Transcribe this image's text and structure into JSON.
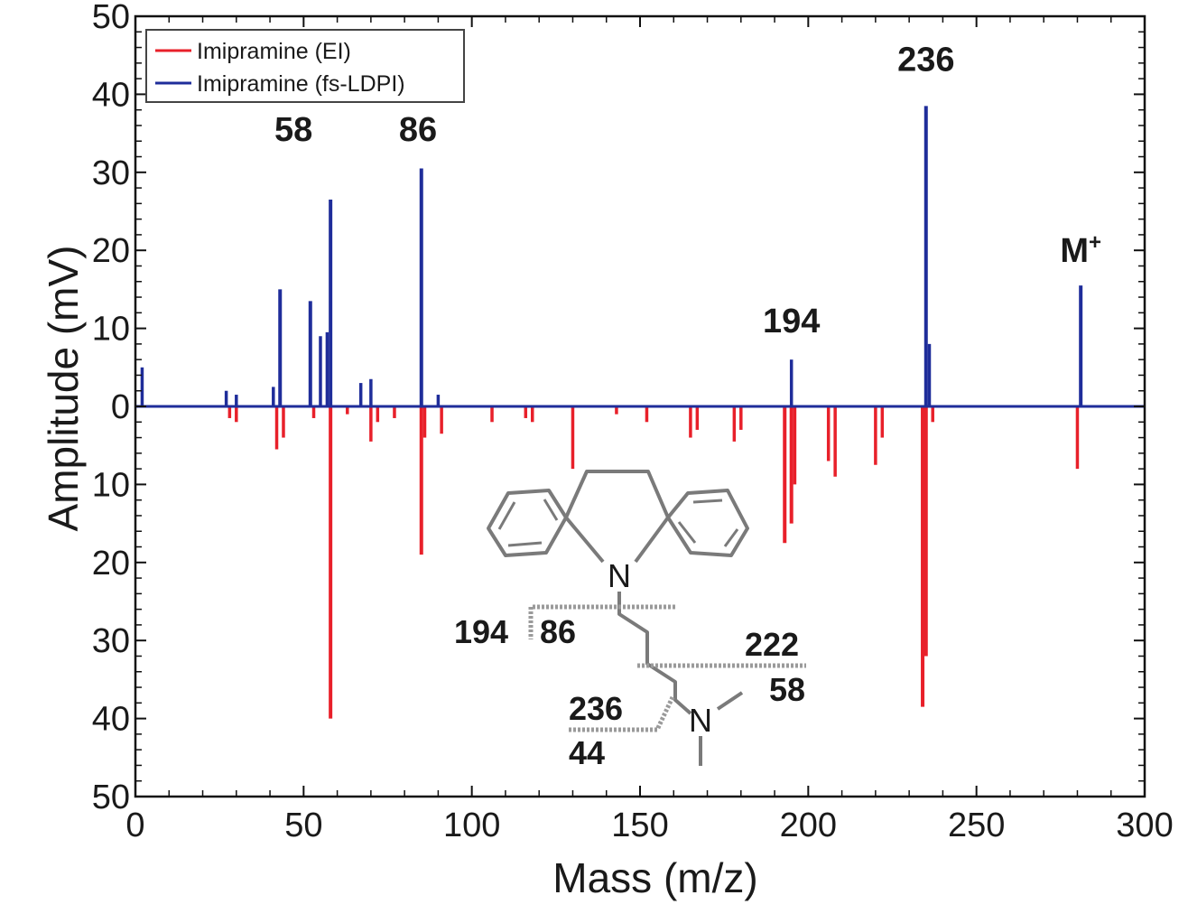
{
  "chart_data": {
    "type": "line",
    "title": "",
    "xlabel": "Mass (m/z)",
    "ylabel": "Amplitude (mV)",
    "xlim": [
      0,
      300
    ],
    "ylim": [
      -50,
      50
    ],
    "x_ticks": [
      0,
      50,
      100,
      150,
      200,
      250,
      300
    ],
    "x_tick_labels": [
      "0",
      "50",
      "100",
      "150",
      "200",
      "250",
      "300"
    ],
    "y_ticks": [
      50,
      40,
      30,
      20,
      10,
      0,
      -10,
      -20,
      -30,
      -40,
      -50
    ],
    "y_tick_labels": [
      "50",
      "40",
      "30",
      "20",
      "10",
      "0",
      "10",
      "20",
      "30",
      "40",
      "50"
    ],
    "legend_position": "top-left",
    "series": [
      {
        "name": "Imipramine (EI)",
        "color": "#e8202a",
        "direction": "down",
        "peaks": [
          [
            28,
            1.5
          ],
          [
            30,
            2
          ],
          [
            42,
            5.5
          ],
          [
            44,
            4
          ],
          [
            53,
            1.5
          ],
          [
            58,
            40
          ],
          [
            63,
            1
          ],
          [
            70,
            4.5
          ],
          [
            72,
            2
          ],
          [
            77,
            1.5
          ],
          [
            85,
            19
          ],
          [
            86,
            4
          ],
          [
            91,
            3.5
          ],
          [
            106,
            2
          ],
          [
            116,
            1.5
          ],
          [
            118,
            2
          ],
          [
            130,
            8
          ],
          [
            143,
            1
          ],
          [
            152,
            2
          ],
          [
            165,
            4
          ],
          [
            167,
            3
          ],
          [
            178,
            4.5
          ],
          [
            180,
            3
          ],
          [
            193,
            17.5
          ],
          [
            195,
            15
          ],
          [
            196,
            10
          ],
          [
            206,
            7
          ],
          [
            208,
            9
          ],
          [
            220,
            7.5
          ],
          [
            222,
            4
          ],
          [
            234,
            38.5
          ],
          [
            235,
            32
          ],
          [
            237,
            2
          ],
          [
            280,
            8
          ]
        ]
      },
      {
        "name": "Imipramine (fs-LDPI)",
        "color": "#1f2d9a",
        "direction": "up",
        "peaks": [
          [
            2,
            5
          ],
          [
            27,
            2
          ],
          [
            30,
            1.5
          ],
          [
            41,
            2.5
          ],
          [
            43,
            15
          ],
          [
            52,
            13.5
          ],
          [
            55,
            9
          ],
          [
            57,
            9.5
          ],
          [
            58,
            26.5
          ],
          [
            67,
            3
          ],
          [
            70,
            3.5
          ],
          [
            85,
            30.5
          ],
          [
            90,
            1.5
          ],
          [
            195,
            6
          ],
          [
            235,
            38.5
          ],
          [
            236,
            8
          ],
          [
            281,
            15.5
          ]
        ]
      }
    ],
    "peak_labels": [
      {
        "text": "58",
        "x": 47,
        "y": 34
      },
      {
        "text": "86",
        "x": 84,
        "y": 34
      },
      {
        "text": "194",
        "x": 195,
        "y": 9.5
      },
      {
        "text": "236",
        "x": 235,
        "y": 43
      },
      {
        "text": "M",
        "sup": "+",
        "x": 281,
        "y": 18.5
      }
    ],
    "annotations": {
      "structure_atoms": [
        "N",
        "N"
      ],
      "fragments": [
        {
          "text": "194"
        },
        {
          "text": "86"
        },
        {
          "text": "222"
        },
        {
          "text": "58"
        },
        {
          "text": "236"
        },
        {
          "text": "44"
        }
      ]
    }
  }
}
